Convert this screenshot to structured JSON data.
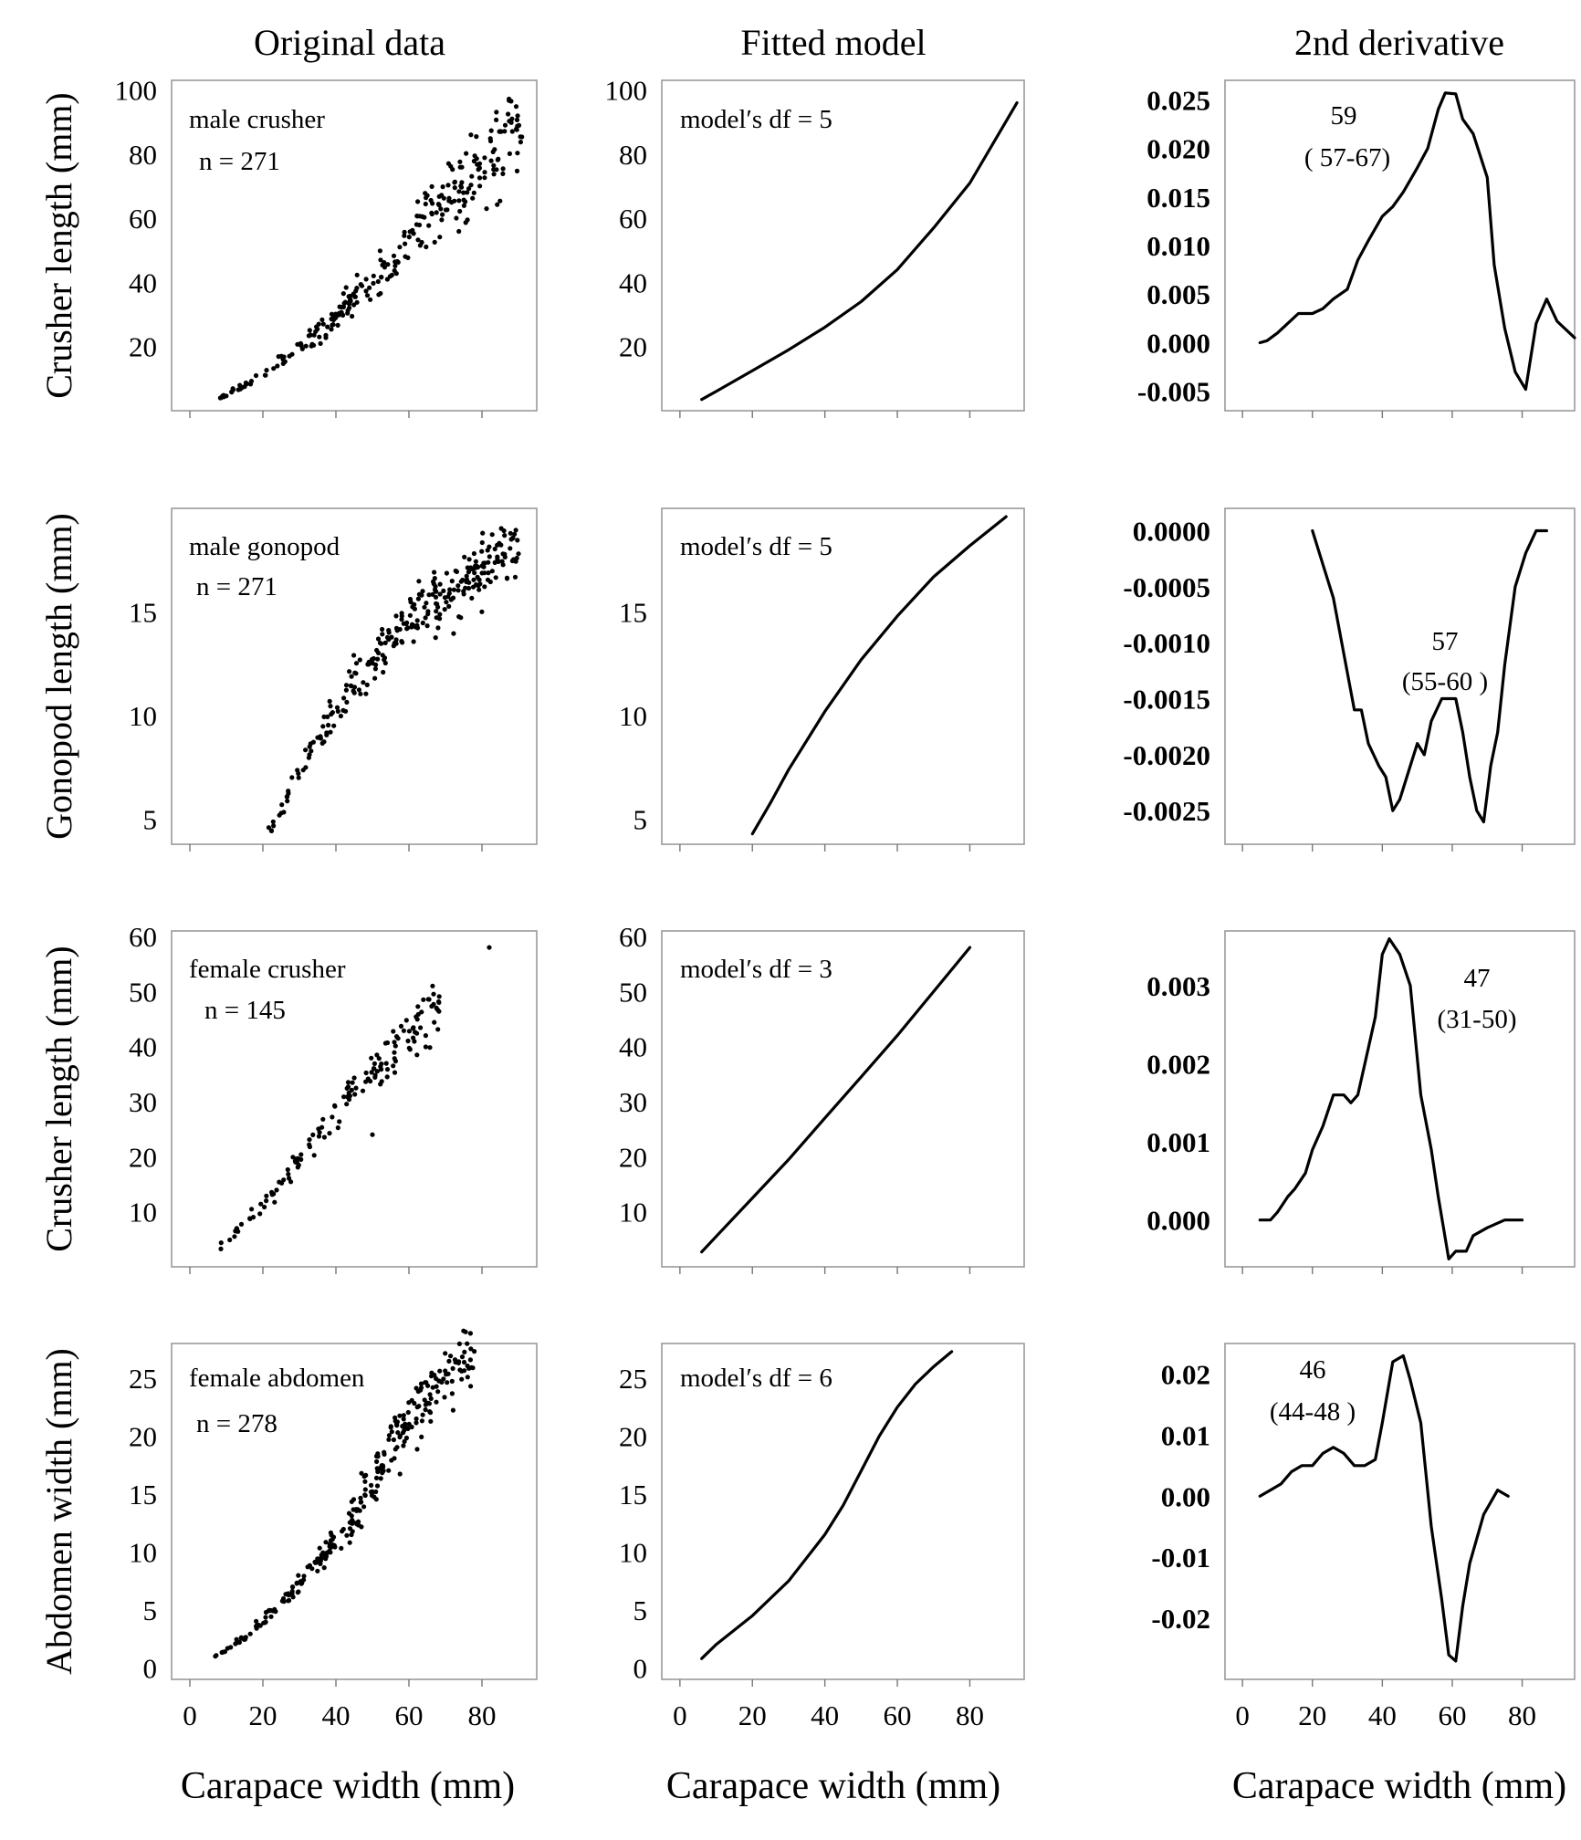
{
  "column_titles": [
    "Original data",
    "Fitted model",
    "2nd derivative"
  ],
  "x_label": "Carapace width (mm)",
  "x_ticks": [
    0,
    20,
    40,
    60,
    80
  ],
  "chart_data": [
    {
      "row": 0,
      "col": 0,
      "type": "scatter",
      "ylabel": "Crusher length (mm)",
      "annotation": [
        "male crusher",
        "n = 271"
      ],
      "n": 271,
      "xlim": [
        -5,
        95
      ],
      "ylim": [
        0,
        103
      ],
      "yticks": [
        20,
        40,
        60,
        80,
        100
      ],
      "tick_style": "normal",
      "trend": [
        [
          7,
          3.5
        ],
        [
          15,
          8
        ],
        [
          25,
          15
        ],
        [
          35,
          24
        ],
        [
          45,
          34
        ],
        [
          55,
          46
        ],
        [
          60,
          53
        ],
        [
          70,
          65
        ],
        [
          80,
          76
        ],
        [
          90,
          89
        ]
      ],
      "spread": 0.08,
      "xrange": [
        7,
        91
      ]
    },
    {
      "row": 0,
      "col": 1,
      "type": "line",
      "ylabel": "",
      "annotation": [
        "model′s df = 5"
      ],
      "xlim": [
        -5,
        95
      ],
      "ylim": [
        0,
        103
      ],
      "yticks": [
        20,
        40,
        60,
        80,
        100
      ],
      "tick_style": "normal",
      "x": [
        6,
        10,
        20,
        30,
        40,
        50,
        60,
        70,
        80,
        93
      ],
      "y": [
        3.5,
        6,
        12.5,
        19,
        26,
        34,
        44,
        57,
        71,
        96
      ]
    },
    {
      "row": 0,
      "col": 2,
      "type": "line",
      "ylabel": "",
      "annotation": [
        "59",
        "( 57-67)"
      ],
      "xlim": [
        -5,
        95
      ],
      "ylim": [
        -0.007,
        0.027
      ],
      "yticks": [
        -0.005,
        0.0,
        0.005,
        0.01,
        0.015,
        0.02,
        0.025
      ],
      "ytick_labels": [
        "-0.005",
        "0.000",
        "0.005",
        "0.010",
        "0.015",
        "0.020",
        "0.025"
      ],
      "tick_style": "bold",
      "x": [
        5,
        7,
        10,
        13,
        16,
        20,
        23,
        26,
        30,
        33,
        36,
        40,
        43,
        46,
        50,
        53,
        56,
        58,
        61,
        63,
        66,
        70,
        72,
        75,
        78,
        81,
        84,
        87,
        90,
        95
      ],
      "y": [
        0.0,
        0.0002,
        0.001,
        0.002,
        0.003,
        0.003,
        0.0035,
        0.0045,
        0.0055,
        0.0085,
        0.0105,
        0.013,
        0.014,
        0.0155,
        0.018,
        0.02,
        0.024,
        0.0257,
        0.0256,
        0.023,
        0.0215,
        0.017,
        0.008,
        0.0015,
        -0.003,
        -0.0048,
        0.002,
        0.0045,
        0.0022,
        0.0005
      ]
    },
    {
      "row": 1,
      "col": 0,
      "type": "scatter",
      "ylabel": "Gonopod length (mm)",
      "annotation": [
        "male gonopod",
        "n = 271"
      ],
      "n": 271,
      "xlim": [
        -5,
        95
      ],
      "ylim": [
        3.8,
        20
      ],
      "yticks": [
        5,
        10,
        15
      ],
      "tick_style": "normal",
      "trend": [
        [
          22,
          4.4
        ],
        [
          30,
          7.4
        ],
        [
          40,
          10.2
        ],
        [
          50,
          12.5
        ],
        [
          60,
          14.5
        ],
        [
          70,
          16.0
        ],
        [
          80,
          17.2
        ],
        [
          90,
          18.3
        ]
      ],
      "spread": 0.045,
      "xrange": [
        21,
        90
      ]
    },
    {
      "row": 1,
      "col": 1,
      "type": "line",
      "ylabel": "",
      "annotation": [
        "model′s df = 5"
      ],
      "xlim": [
        -5,
        95
      ],
      "ylim": [
        3.8,
        20
      ],
      "yticks": [
        5,
        10,
        15
      ],
      "tick_style": "normal",
      "x": [
        20,
        25,
        30,
        40,
        50,
        60,
        70,
        80,
        90
      ],
      "y": [
        4.3,
        5.8,
        7.4,
        10.2,
        12.7,
        14.8,
        16.7,
        18.2,
        19.6
      ]
    },
    {
      "row": 1,
      "col": 2,
      "type": "line",
      "ylabel": "",
      "annotation": [
        "57",
        "(55-60 )"
      ],
      "xlim": [
        -5,
        95
      ],
      "ylim": [
        -0.0028,
        0.0002
      ],
      "yticks": [
        -0.0025,
        -0.002,
        -0.0015,
        -0.001,
        -0.0005,
        0.0
      ],
      "ytick_labels": [
        "-0.0025",
        "-0.0020",
        "-0.0015",
        "-0.0010",
        "-0.0005",
        "0.0000"
      ],
      "tick_style": "bold",
      "x": [
        20,
        23,
        26,
        29,
        32,
        34,
        36,
        39,
        41,
        43,
        45,
        48,
        50,
        52,
        54,
        57,
        59,
        61,
        63,
        65,
        67,
        69,
        71,
        73,
        75,
        78,
        81,
        84,
        87
      ],
      "y": [
        0.0,
        -0.0003,
        -0.0006,
        -0.0011,
        -0.0016,
        -0.0016,
        -0.0019,
        -0.0021,
        -0.0022,
        -0.0025,
        -0.0024,
        -0.0021,
        -0.0019,
        -0.002,
        -0.0017,
        -0.0015,
        -0.0015,
        -0.0015,
        -0.0018,
        -0.0022,
        -0.0025,
        -0.0026,
        -0.0021,
        -0.0018,
        -0.0012,
        -0.0005,
        -0.0002,
        0.0,
        0.0
      ]
    },
    {
      "row": 2,
      "col": 0,
      "type": "scatter",
      "ylabel": "Crusher length (mm)",
      "annotation": [
        "female crusher",
        "n = 145"
      ],
      "n": 145,
      "xlim": [
        -5,
        95
      ],
      "ylim": [
        0,
        61
      ],
      "yticks": [
        10,
        20,
        30,
        40,
        50,
        60
      ],
      "tick_style": "normal",
      "trend": [
        [
          7,
          3
        ],
        [
          15,
          8
        ],
        [
          25,
          15
        ],
        [
          35,
          24
        ],
        [
          45,
          32
        ],
        [
          55,
          39
        ],
        [
          65,
          45
        ],
        [
          69,
          47
        ]
      ],
      "spread": 0.06,
      "xrange": [
        7,
        69
      ],
      "extra_points": [
        [
          82,
          58
        ],
        [
          50,
          24
        ]
      ]
    },
    {
      "row": 2,
      "col": 1,
      "type": "line",
      "ylabel": "",
      "annotation": [
        "model′s df = 3"
      ],
      "xlim": [
        -5,
        95
      ],
      "ylim": [
        0,
        61
      ],
      "yticks": [
        10,
        20,
        30,
        40,
        50,
        60
      ],
      "tick_style": "normal",
      "x": [
        6,
        10,
        20,
        30,
        40,
        50,
        60,
        70,
        80
      ],
      "y": [
        2.7,
        5.5,
        12.5,
        19.5,
        27,
        34.5,
        42,
        50,
        58
      ]
    },
    {
      "row": 2,
      "col": 2,
      "type": "line",
      "ylabel": "",
      "annotation": [
        "47",
        "(31-50)"
      ],
      "xlim": [
        -5,
        95
      ],
      "ylim": [
        -0.0006,
        0.0037
      ],
      "yticks": [
        0.0,
        0.001,
        0.002,
        0.003
      ],
      "ytick_labels": [
        "0.000",
        "0.001",
        "0.002",
        "0.003"
      ],
      "tick_style": "bold",
      "x": [
        5,
        8,
        10,
        13,
        15,
        18,
        20,
        23,
        26,
        29,
        31,
        33,
        35,
        38,
        40,
        42,
        45,
        48,
        51,
        54,
        56,
        59,
        61,
        64,
        66,
        70,
        75,
        80
      ],
      "y": [
        0.0,
        0.0,
        0.0001,
        0.0003,
        0.0004,
        0.0006,
        0.0009,
        0.0012,
        0.0016,
        0.0016,
        0.0015,
        0.0016,
        0.002,
        0.0026,
        0.0034,
        0.0036,
        0.0034,
        0.003,
        0.0016,
        0.0009,
        0.0003,
        -0.0005,
        -0.0004,
        -0.0004,
        -0.0002,
        -0.0001,
        0.0,
        0.0
      ]
    },
    {
      "row": 3,
      "col": 0,
      "type": "scatter",
      "ylabel": "Abdomen width (mm)",
      "annotation": [
        "female abdomen",
        "n = 278"
      ],
      "n": 278,
      "xlim": [
        -5,
        95
      ],
      "ylim": [
        -1,
        28
      ],
      "yticks": [
        0,
        5,
        10,
        15,
        20,
        25
      ],
      "tick_style": "normal",
      "trend": [
        [
          6,
          0.8
        ],
        [
          15,
          2.5
        ],
        [
          25,
          5.5
        ],
        [
          35,
          9
        ],
        [
          45,
          13
        ],
        [
          50,
          16
        ],
        [
          55,
          19
        ],
        [
          60,
          21.5
        ],
        [
          65,
          23.5
        ],
        [
          70,
          25
        ],
        [
          78,
          27.2
        ]
      ],
      "spread": 0.06,
      "xrange": [
        6,
        78
      ]
    },
    {
      "row": 3,
      "col": 1,
      "type": "line",
      "ylabel": "",
      "annotation": [
        "model′s df = 6"
      ],
      "xlim": [
        -5,
        95
      ],
      "ylim": [
        -1,
        28
      ],
      "yticks": [
        0,
        5,
        10,
        15,
        20,
        25
      ],
      "tick_style": "normal",
      "x": [
        6,
        10,
        20,
        30,
        40,
        45,
        50,
        55,
        60,
        65,
        70,
        75
      ],
      "y": [
        0.8,
        2,
        4.5,
        7.5,
        11.5,
        14,
        17,
        20,
        22.5,
        24.5,
        26,
        27.3
      ]
    },
    {
      "row": 3,
      "col": 2,
      "type": "line",
      "ylabel": "",
      "annotation": [
        "46",
        "(44-48 )"
      ],
      "xlim": [
        -5,
        95
      ],
      "ylim": [
        -0.03,
        0.025
      ],
      "yticks": [
        -0.02,
        -0.01,
        0.0,
        0.01,
        0.02
      ],
      "ytick_labels": [
        "-0.02",
        "-0.01",
        "0.00",
        "0.01",
        "0.02"
      ],
      "tick_style": "bold",
      "x": [
        5,
        8,
        11,
        14,
        17,
        20,
        23,
        26,
        29,
        32,
        35,
        38,
        40,
        43,
        46,
        48,
        51,
        54,
        57,
        59,
        61,
        63,
        65,
        69,
        73,
        76
      ],
      "y": [
        0.0,
        0.001,
        0.002,
        0.004,
        0.005,
        0.005,
        0.007,
        0.008,
        0.007,
        0.005,
        0.005,
        0.006,
        0.012,
        0.022,
        0.023,
        0.019,
        0.012,
        -0.005,
        -0.017,
        -0.026,
        -0.027,
        -0.018,
        -0.011,
        -0.003,
        0.001,
        0.0
      ]
    }
  ]
}
